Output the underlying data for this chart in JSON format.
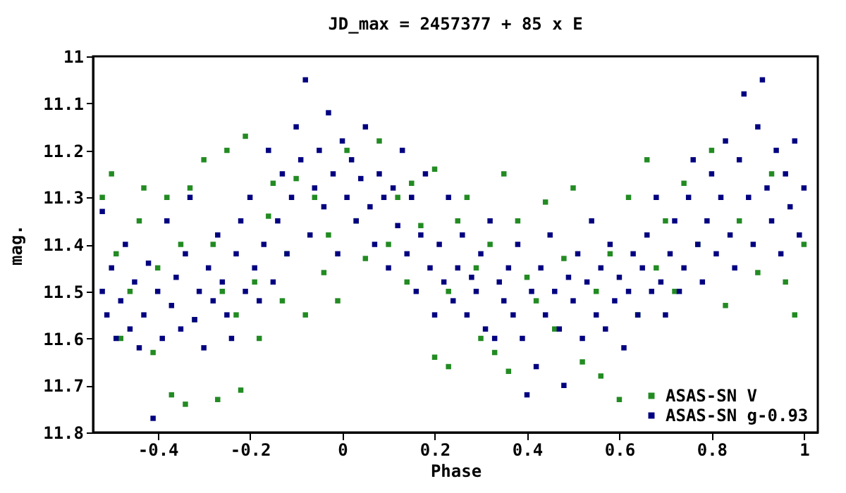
{
  "chart_data": {
    "type": "scatter",
    "title": "JD_max = 2457377 + 85 x E",
    "xlabel": "Phase",
    "ylabel": "mag.",
    "xlim": [
      -0.54,
      1.03
    ],
    "xticks": [
      -0.4,
      -0.2,
      0,
      0.2,
      0.4,
      0.6,
      0.8,
      1
    ],
    "ylim": [
      11.8,
      11
    ],
    "yticks": [
      11,
      11.1,
      11.2,
      11.3,
      11.4,
      11.5,
      11.6,
      11.7,
      11.8
    ],
    "grid": false,
    "legend": "bottom right",
    "marker": "square",
    "series": [
      {
        "name": "ASAS-SN V",
        "color": "#228b22",
        "x": [
          -0.52,
          -0.5,
          -0.49,
          -0.48,
          -0.46,
          -0.44,
          -0.43,
          -0.41,
          -0.4,
          -0.38,
          -0.37,
          -0.35,
          -0.34,
          -0.33,
          -0.32,
          -0.3,
          -0.28,
          -0.27,
          -0.26,
          -0.25,
          -0.23,
          -0.22,
          -0.21,
          -0.19,
          -0.18,
          -0.16,
          -0.15,
          -0.13,
          -0.12,
          -0.1,
          -0.08,
          -0.06,
          -0.04,
          -0.03,
          -0.01,
          0.01,
          0.03,
          0.05,
          0.08,
          0.1,
          0.12,
          0.14,
          0.15,
          0.17,
          0.2,
          0.2,
          0.23,
          0.23,
          0.25,
          0.27,
          0.29,
          0.3,
          0.32,
          0.33,
          0.35,
          0.36,
          0.38,
          0.4,
          0.42,
          0.44,
          0.46,
          0.48,
          0.5,
          0.52,
          0.55,
          0.56,
          0.58,
          0.6,
          0.62,
          0.64,
          0.66,
          0.68,
          0.7,
          0.72,
          0.74,
          0.77,
          0.8,
          0.83,
          0.86,
          0.9,
          0.93,
          0.96,
          0.98,
          1.0
        ],
        "values": [
          11.3,
          11.25,
          11.42,
          11.6,
          11.5,
          11.35,
          11.28,
          11.63,
          11.45,
          11.3,
          11.72,
          11.4,
          11.74,
          11.28,
          11.56,
          11.22,
          11.4,
          11.73,
          11.5,
          11.2,
          11.55,
          11.71,
          11.17,
          11.48,
          11.6,
          11.34,
          11.27,
          11.52,
          11.42,
          11.26,
          11.55,
          11.3,
          11.46,
          11.38,
          11.52,
          11.2,
          11.35,
          11.43,
          11.18,
          11.4,
          11.3,
          11.48,
          11.27,
          11.36,
          11.24,
          11.64,
          11.5,
          11.66,
          11.35,
          11.3,
          11.45,
          11.6,
          11.4,
          11.63,
          11.25,
          11.67,
          11.35,
          11.47,
          11.52,
          11.31,
          11.58,
          11.43,
          11.28,
          11.65,
          11.5,
          11.68,
          11.42,
          11.73,
          11.3,
          11.55,
          11.22,
          11.45,
          11.35,
          11.5,
          11.27,
          11.4,
          11.2,
          11.53,
          11.35,
          11.46,
          11.25,
          11.48,
          11.55,
          11.4
        ]
      },
      {
        "name": "ASAS-SN g-0.93",
        "color": "#000080",
        "x": [
          -0.52,
          -0.52,
          -0.51,
          -0.5,
          -0.49,
          -0.48,
          -0.47,
          -0.46,
          -0.45,
          -0.44,
          -0.43,
          -0.42,
          -0.41,
          -0.4,
          -0.39,
          -0.38,
          -0.37,
          -0.36,
          -0.35,
          -0.34,
          -0.33,
          -0.32,
          -0.31,
          -0.3,
          -0.29,
          -0.28,
          -0.27,
          -0.26,
          -0.25,
          -0.24,
          -0.23,
          -0.22,
          -0.21,
          -0.2,
          -0.19,
          -0.18,
          -0.17,
          -0.16,
          -0.15,
          -0.14,
          -0.13,
          -0.12,
          -0.11,
          -0.1,
          -0.09,
          -0.08,
          -0.07,
          -0.06,
          -0.05,
          -0.04,
          -0.03,
          -0.02,
          -0.01,
          0,
          0.01,
          0.02,
          0.03,
          0.04,
          0.05,
          0.06,
          0.07,
          0.08,
          0.09,
          0.1,
          0.11,
          0.12,
          0.13,
          0.14,
          0.15,
          0.16,
          0.17,
          0.18,
          0.19,
          0.2,
          0.21,
          0.22,
          0.23,
          0.24,
          0.25,
          0.26,
          0.27,
          0.28,
          0.29,
          0.3,
          0.31,
          0.32,
          0.33,
          0.34,
          0.35,
          0.36,
          0.37,
          0.38,
          0.39,
          0.4,
          0.41,
          0.42,
          0.43,
          0.44,
          0.45,
          0.46,
          0.47,
          0.48,
          0.49,
          0.5,
          0.51,
          0.52,
          0.53,
          0.54,
          0.55,
          0.56,
          0.57,
          0.58,
          0.59,
          0.6,
          0.61,
          0.62,
          0.63,
          0.64,
          0.65,
          0.66,
          0.67,
          0.68,
          0.69,
          0.7,
          0.71,
          0.72,
          0.73,
          0.74,
          0.75,
          0.76,
          0.77,
          0.78,
          0.79,
          0.8,
          0.81,
          0.82,
          0.83,
          0.84,
          0.85,
          0.86,
          0.87,
          0.88,
          0.89,
          0.9,
          0.91,
          0.92,
          0.93,
          0.94,
          0.95,
          0.96,
          0.97,
          0.98,
          0.99,
          1.0
        ],
        "values": [
          11.33,
          11.5,
          11.55,
          11.45,
          11.6,
          11.52,
          11.4,
          11.58,
          11.48,
          11.62,
          11.55,
          11.44,
          11.77,
          11.5,
          11.6,
          11.35,
          11.53,
          11.47,
          11.58,
          11.42,
          11.3,
          11.56,
          11.5,
          11.62,
          11.45,
          11.52,
          11.38,
          11.48,
          11.55,
          11.6,
          11.42,
          11.35,
          11.5,
          11.3,
          11.45,
          11.52,
          11.4,
          11.2,
          11.48,
          11.35,
          11.25,
          11.42,
          11.3,
          11.15,
          11.22,
          11.05,
          11.38,
          11.28,
          11.2,
          11.32,
          11.12,
          11.25,
          11.42,
          11.18,
          11.3,
          11.22,
          11.35,
          11.26,
          11.15,
          11.32,
          11.4,
          11.25,
          11.3,
          11.45,
          11.28,
          11.36,
          11.2,
          11.42,
          11.3,
          11.5,
          11.38,
          11.25,
          11.45,
          11.55,
          11.4,
          11.48,
          11.3,
          11.52,
          11.45,
          11.38,
          11.55,
          11.47,
          11.5,
          11.42,
          11.58,
          11.35,
          11.6,
          11.48,
          11.52,
          11.45,
          11.55,
          11.4,
          11.6,
          11.72,
          11.5,
          11.66,
          11.45,
          11.55,
          11.38,
          11.5,
          11.58,
          11.7,
          11.47,
          11.52,
          11.42,
          11.6,
          11.48,
          11.35,
          11.55,
          11.45,
          11.58,
          11.4,
          11.52,
          11.47,
          11.62,
          11.5,
          11.42,
          11.55,
          11.45,
          11.38,
          11.5,
          11.3,
          11.48,
          11.55,
          11.42,
          11.35,
          11.5,
          11.45,
          11.3,
          11.22,
          11.4,
          11.48,
          11.35,
          11.25,
          11.42,
          11.3,
          11.18,
          11.38,
          11.45,
          11.22,
          11.08,
          11.3,
          11.4,
          11.15,
          11.05,
          11.28,
          11.35,
          11.2,
          11.42,
          11.25,
          11.32,
          11.18,
          11.38,
          11.28
        ]
      }
    ]
  }
}
